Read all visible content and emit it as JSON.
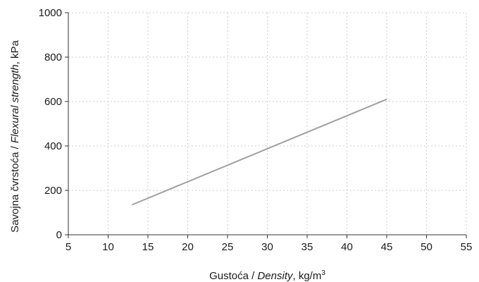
{
  "chart_data": {
    "type": "line",
    "xlabel_parts": [
      "Gustoća / ",
      "Density",
      ", kg/m",
      "3"
    ],
    "ylabel_parts": [
      "Savojna čvrstoća / ",
      "Flexural strength",
      ", kPa"
    ],
    "xlim": [
      5,
      55
    ],
    "ylim": [
      0,
      1000
    ],
    "x_ticks": [
      "5",
      "10",
      "15",
      "20",
      "25",
      "30",
      "35",
      "40",
      "45",
      "50",
      "55"
    ],
    "y_ticks": [
      "0",
      "200",
      "400",
      "600",
      "800",
      "1000"
    ],
    "grid": true,
    "series": [
      {
        "x": [
          13,
          45
        ],
        "y": [
          135,
          610
        ],
        "color": "#a0a0a0"
      }
    ]
  }
}
